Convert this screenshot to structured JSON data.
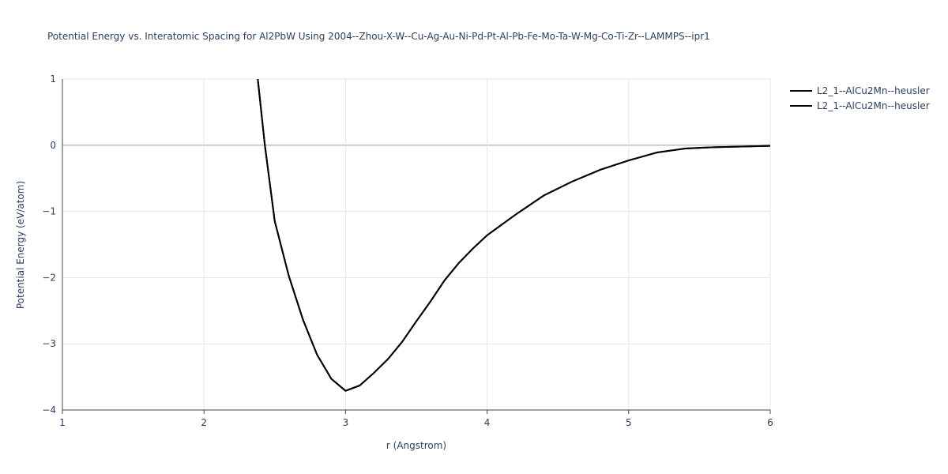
{
  "chart_data": {
    "type": "line",
    "title": "Potential Energy vs. Interatomic Spacing for Al2PbW Using 2004--Zhou-X-W--Cu-Ag-Au-Ni-Pd-Pt-Al-Pb-Fe-Mo-Ta-W-Mg-Co-Ti-Zr--LAMMPS--ipr1",
    "x_label": "r (Angstrom)",
    "y_label": "Potential Energy (eV/atom)",
    "xlim": [
      1,
      6
    ],
    "ylim": [
      -4,
      1
    ],
    "xticks": [
      1,
      2,
      3,
      4,
      5,
      6
    ],
    "yticks": [
      {
        "value": -4,
        "label": "−4"
      },
      {
        "value": -3,
        "label": "−3"
      },
      {
        "value": -2,
        "label": "−2"
      },
      {
        "value": -1,
        "label": "−1"
      },
      0,
      1
    ],
    "grid": true,
    "legend": "right",
    "series": [
      {
        "name": "L2_1--AlCu2Mn--heusler",
        "color": "#000000",
        "x": [
          2.38,
          2.43,
          2.5,
          2.6,
          2.7,
          2.8,
          2.9,
          3.0,
          3.1,
          3.2,
          3.3,
          3.4,
          3.5,
          3.6,
          3.7,
          3.8,
          3.9,
          4.0,
          4.2,
          4.4,
          4.6,
          4.8,
          5.0,
          5.1,
          5.2,
          5.4,
          5.6,
          6.0
        ],
        "values": [
          1,
          0,
          -1.15,
          -1.98,
          -2.64,
          -3.17,
          -3.53,
          -3.71,
          -3.63,
          -3.44,
          -3.23,
          -2.97,
          -2.66,
          -2.36,
          -2.04,
          -1.78,
          -1.56,
          -1.36,
          -1.05,
          -0.76,
          -0.55,
          -0.37,
          -0.23,
          -0.17,
          -0.11,
          -0.05,
          -0.03,
          -0.01
        ]
      },
      {
        "name": "L2_1--AlCu2Mn--heusler",
        "color": "#000000",
        "x": [
          2.38,
          2.43,
          2.5,
          2.6,
          2.7,
          2.8,
          2.9,
          3.0,
          3.1,
          3.2,
          3.3,
          3.4,
          3.5,
          3.6,
          3.7,
          3.8,
          3.9,
          4.0,
          4.2,
          4.4,
          4.6,
          4.8,
          5.0,
          5.1,
          5.2,
          5.4,
          5.6,
          6.0
        ],
        "values": [
          1,
          0,
          -1.15,
          -1.98,
          -2.64,
          -3.17,
          -3.53,
          -3.71,
          -3.63,
          -3.44,
          -3.23,
          -2.97,
          -2.66,
          -2.36,
          -2.04,
          -1.78,
          -1.56,
          -1.36,
          -1.05,
          -0.76,
          -0.55,
          -0.37,
          -0.23,
          -0.17,
          -0.11,
          -0.05,
          -0.03,
          -0.01
        ]
      }
    ]
  }
}
